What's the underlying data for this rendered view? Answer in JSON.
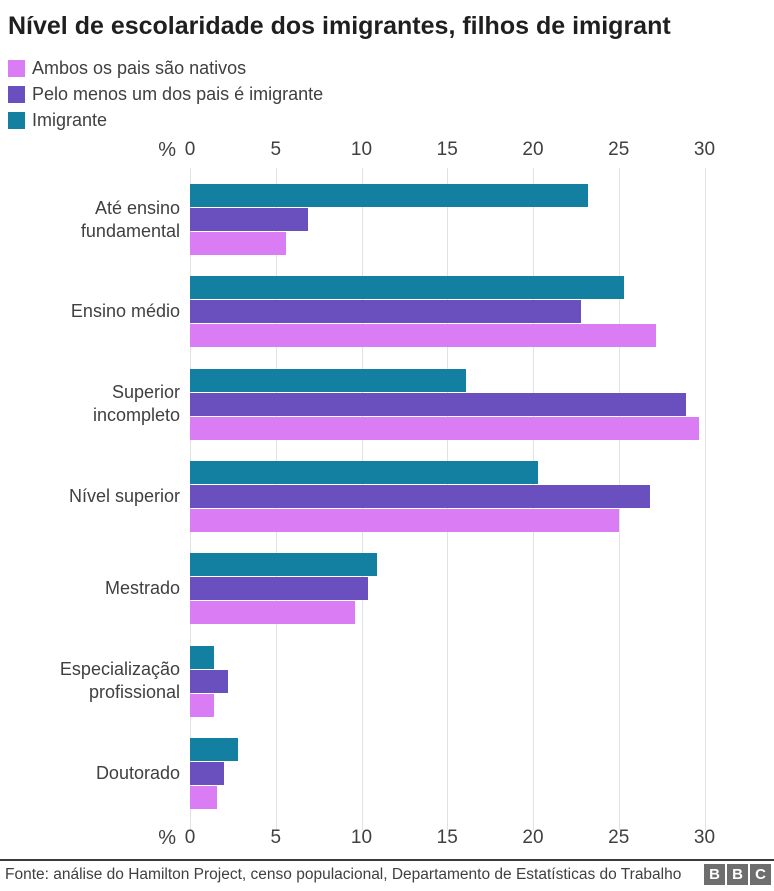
{
  "title": "Nível de escolaridade dos imigrantes, filhos de imigrant",
  "legend": {
    "items": [
      {
        "label": "Ambos os pais são nativos",
        "color": "#DA7DF5"
      },
      {
        "label": "Pelo menos um dos pais é imigrante",
        "color": "#6A4FBF"
      },
      {
        "label": "Imigrante",
        "color": "#1380A1"
      }
    ]
  },
  "axis": {
    "unit_label": "%",
    "ticks": [
      0,
      5,
      10,
      15,
      20,
      25,
      30
    ]
  },
  "chart_data": {
    "type": "bar",
    "orientation": "horizontal",
    "title": "Nível de escolaridade dos imigrantes, filhos de imigrant",
    "xlabel": "%",
    "xlim": [
      0,
      34
    ],
    "grid": true,
    "legend_position": "top-left",
    "categories": [
      "Até ensino fundamental",
      "Ensino médio",
      "Superior incompleto",
      "Nível superior",
      "Mestrado",
      "Especialização profissional",
      "Doutorado"
    ],
    "series": [
      {
        "name": "Imigrante",
        "color": "#1380A1",
        "values": [
          23.2,
          25.3,
          16.1,
          20.3,
          10.9,
          1.4,
          2.8
        ]
      },
      {
        "name": "Pelo menos um dos pais é imigrante",
        "color": "#6A4FBF",
        "values": [
          6.9,
          22.8,
          28.9,
          26.8,
          10.4,
          2.2,
          2.0
        ]
      },
      {
        "name": "Ambos os pais são nativos",
        "color": "#DA7DF5",
        "values": [
          5.6,
          27.2,
          29.7,
          25.0,
          9.6,
          1.4,
          1.6
        ]
      }
    ]
  },
  "footer": {
    "source": "Fonte: análise do Hamilton Project, censo populacional, Departamento de Estatísticas do Trabalho",
    "logo": [
      "B",
      "B",
      "C"
    ]
  }
}
